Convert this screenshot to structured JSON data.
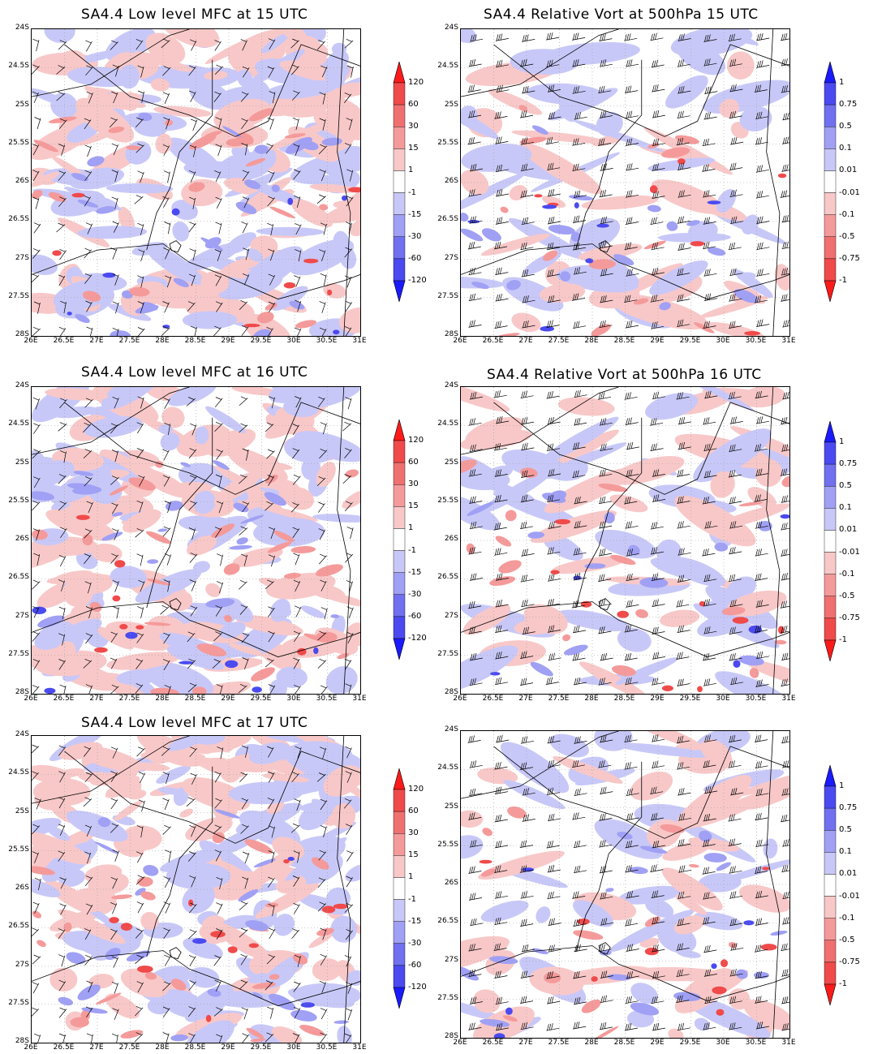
{
  "panels": [
    {
      "title": "SA4.4 Low level MFC at 15 UTC",
      "kind": "mfc",
      "seed": 11
    },
    {
      "title": "SA4.4 Relative Vort at 500hPa 15 UTC",
      "kind": "vort",
      "seed": 23
    },
    {
      "title": "SA4.4 Low level MFC at 16 UTC",
      "kind": "mfc",
      "seed": 37
    },
    {
      "title": "SA4.4 Relative Vort at 500hPa 16 UTC",
      "kind": "vort",
      "seed": 41
    },
    {
      "title": "SA4.4 Low level MFC at 17 UTC",
      "kind": "mfc",
      "seed": 53
    },
    {
      "title": "",
      "kind": "vort",
      "seed": 67
    }
  ],
  "axes": {
    "y_ticks": [
      "24S",
      "24.5S",
      "25S",
      "25.5S",
      "26S",
      "26.5S",
      "27S",
      "27.5S",
      "28S"
    ],
    "x_ticks": [
      "26E",
      "26.5E",
      "27E",
      "27.5E",
      "28E",
      "28.5E",
      "29E",
      "29.5E",
      "30E",
      "30.5E",
      "31E"
    ]
  },
  "colorbars": {
    "mfc": {
      "labels": [
        "120",
        "60",
        "30",
        "15",
        "1",
        "-1",
        "-15",
        "-30",
        "-60",
        "-120"
      ],
      "colors": [
        "#ff1a1a",
        "#f04a4a",
        "#f07070",
        "#f59a9a",
        "#f8c8c8",
        "#ffffff",
        "#c8c8f8",
        "#a0a0f5",
        "#7070f0",
        "#4a4af0",
        "#1a1aff"
      ]
    },
    "vort": {
      "labels": [
        "1",
        "0.75",
        "0.5",
        "0.1",
        "0.01",
        "-0.01",
        "-0.1",
        "-0.5",
        "-0.75",
        "-1"
      ],
      "colors": [
        "#1a1aff",
        "#4a4af0",
        "#7070f0",
        "#a0a0f5",
        "#c8c8f8",
        "#ffffff",
        "#f8c8c8",
        "#f59a9a",
        "#f07070",
        "#f04a4a",
        "#ff1a1a"
      ]
    }
  }
}
